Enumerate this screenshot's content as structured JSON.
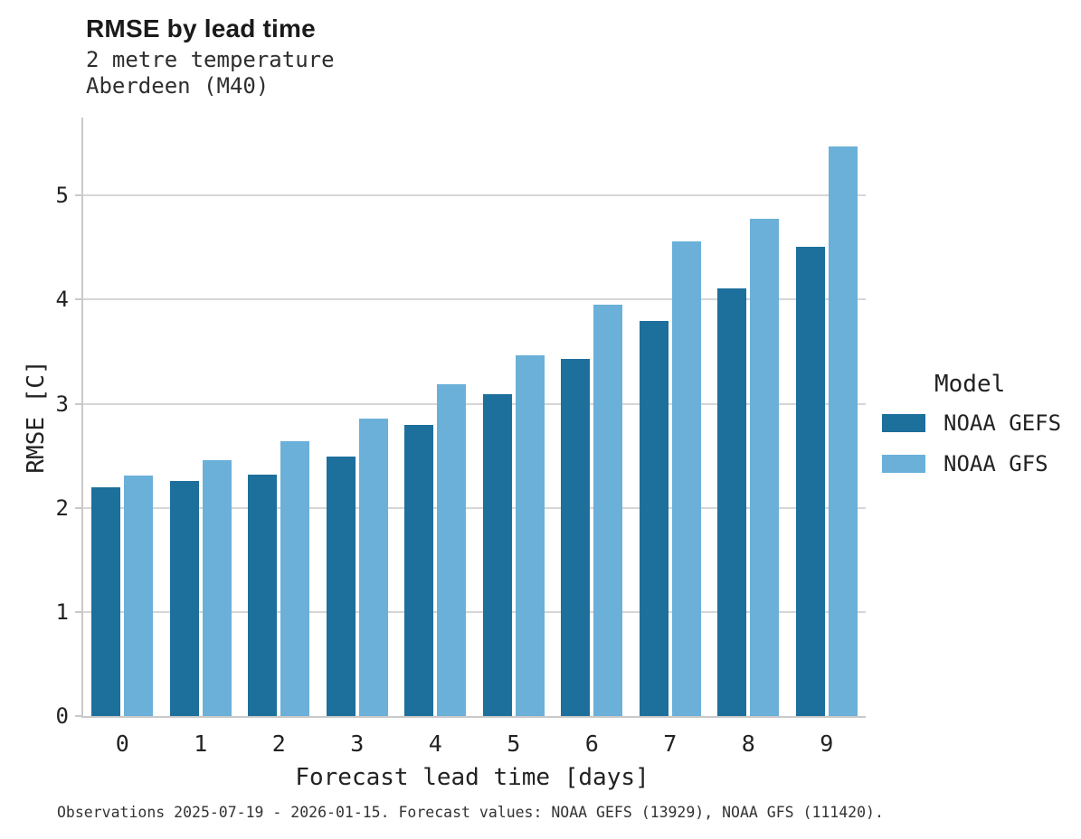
{
  "header": {
    "title": "RMSE by lead time",
    "subtitle_line1": "2 metre temperature",
    "subtitle_line2": "Aberdeen (M40)"
  },
  "chart_data": {
    "type": "bar",
    "title": "RMSE by lead time",
    "subtitle": [
      "2 metre temperature",
      "Aberdeen (M40)"
    ],
    "categories": [
      0,
      1,
      2,
      3,
      4,
      5,
      6,
      7,
      8,
      9
    ],
    "series": [
      {
        "name": "NOAA GEFS",
        "color": "#1d6f9c",
        "values": [
          2.2,
          2.26,
          2.32,
          2.49,
          2.8,
          3.09,
          3.43,
          3.8,
          4.11,
          4.51
        ]
      },
      {
        "name": "NOAA GFS",
        "color": "#6bb0d9",
        "values": [
          2.31,
          2.46,
          2.64,
          2.86,
          3.19,
          3.47,
          3.95,
          4.56,
          4.78,
          5.47
        ]
      }
    ],
    "xlabel": "Forecast lead time [days]",
    "ylabel": "RMSE [C]",
    "ylim": [
      0,
      5.75
    ],
    "yticks": [
      0,
      1,
      2,
      3,
      4,
      5
    ],
    "grid": true,
    "legend_title": "Model",
    "legend_position": "right"
  },
  "caption": "Observations 2025-07-19 - 2026-01-15. Forecast values: NOAA GEFS (13929), NOAA GFS (111420)."
}
